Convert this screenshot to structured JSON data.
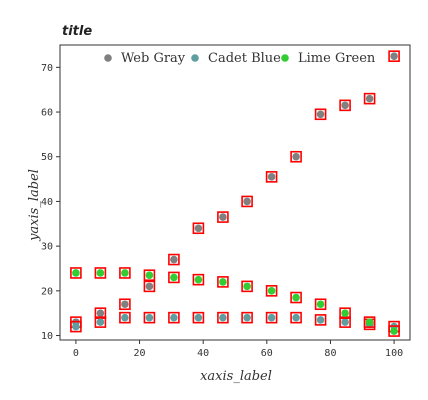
{
  "chart_data": {
    "type": "scatter",
    "title": "title",
    "xlabel": "xaxis_label",
    "ylabel": "yaxis_label",
    "xlim": [
      -5,
      105
    ],
    "ylim": [
      9,
      75
    ],
    "xticks": [
      0,
      20,
      40,
      60,
      80,
      100
    ],
    "yticks": [
      10,
      20,
      30,
      40,
      50,
      60,
      70
    ],
    "grid": false,
    "legend_position": "top-right",
    "marker_edge_color": "#ff0000",
    "x": [
      0,
      7.7,
      15.4,
      23.1,
      30.8,
      38.5,
      46.2,
      53.8,
      61.5,
      69.2,
      76.9,
      84.6,
      92.3,
      100
    ],
    "series": [
      {
        "name": "Web Gray",
        "color": "#808080",
        "values": [
          13,
          15,
          17,
          21,
          27,
          34,
          36.5,
          40,
          45.5,
          50,
          59.5,
          61.5,
          63,
          72.5
        ]
      },
      {
        "name": "Cadet Blue",
        "color": "#5f9ea0",
        "values": [
          12,
          13,
          14,
          14,
          14,
          14,
          14,
          14,
          14,
          14,
          13.5,
          13,
          12.5,
          12
        ]
      },
      {
        "name": "Lime Green",
        "color": "#32cd32",
        "values": [
          24,
          24,
          24,
          23.5,
          23,
          22.5,
          22,
          21,
          20,
          18.5,
          17,
          15,
          13,
          11
        ]
      }
    ]
  }
}
